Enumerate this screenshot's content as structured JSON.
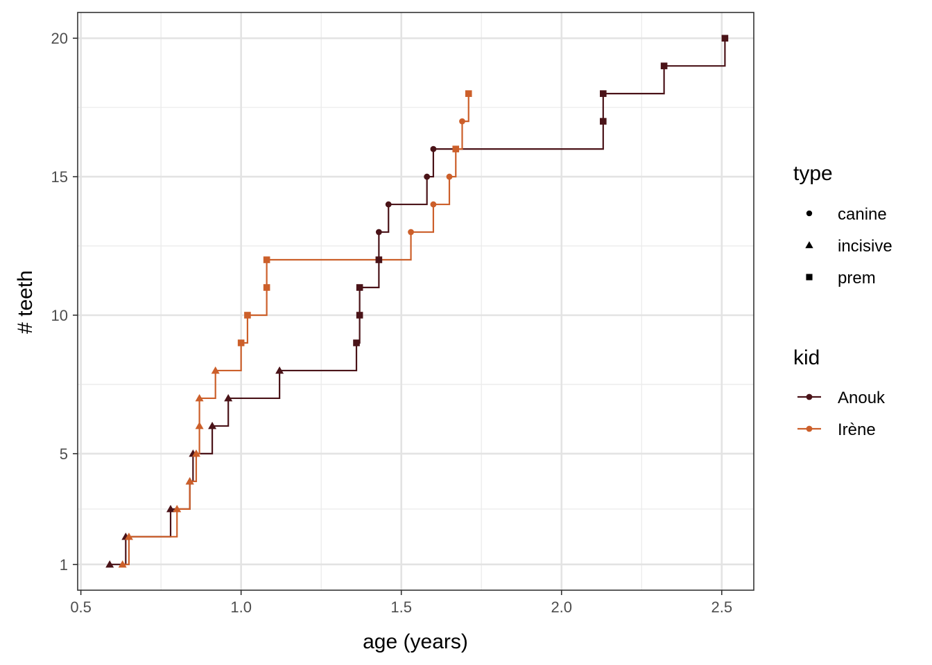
{
  "chart_data": {
    "type": "line",
    "step": "hv",
    "xlabel": "age (years)",
    "ylabel": "# teeth",
    "xlim": [
      0.49,
      2.6
    ],
    "ylim": [
      0.07,
      20.93
    ],
    "x_ticks": [
      0.5,
      1.0,
      1.5,
      2.0,
      2.5
    ],
    "x_tick_labels": [
      "0.5",
      "1.0",
      "1.5",
      "2.0",
      "2.5"
    ],
    "x_minor": [
      0.75,
      1.25,
      1.75,
      2.25
    ],
    "y_ticks": [
      1,
      5,
      10,
      15,
      20
    ],
    "y_tick_labels": [
      "1",
      "5",
      "10",
      "15",
      "20"
    ],
    "y_minor": [
      3,
      7.5,
      12.5,
      17.5
    ],
    "grid": true,
    "legend_position": "right",
    "shape_legend": {
      "title": "type",
      "items": [
        {
          "label": "canine",
          "shape": "circle"
        },
        {
          "label": "incisive",
          "shape": "triangle"
        },
        {
          "label": "prem",
          "shape": "square"
        }
      ]
    },
    "color_legend": {
      "title": "kid",
      "items": [
        {
          "label": "Anouk",
          "color": "#4a1318"
        },
        {
          "label": "Irène",
          "color": "#cc5f2a"
        }
      ]
    },
    "series": [
      {
        "name": "Anouk",
        "color": "#4a1318",
        "points": [
          {
            "x": 0.59,
            "y": 1,
            "type": "incisive"
          },
          {
            "x": 0.64,
            "y": 2,
            "type": "incisive"
          },
          {
            "x": 0.78,
            "y": 3,
            "type": "incisive"
          },
          {
            "x": 0.84,
            "y": 4,
            "type": "incisive"
          },
          {
            "x": 0.85,
            "y": 5,
            "type": "incisive"
          },
          {
            "x": 0.91,
            "y": 6,
            "type": "incisive"
          },
          {
            "x": 0.96,
            "y": 7,
            "type": "incisive"
          },
          {
            "x": 1.12,
            "y": 8,
            "type": "incisive"
          },
          {
            "x": 1.36,
            "y": 9,
            "type": "prem"
          },
          {
            "x": 1.37,
            "y": 10,
            "type": "prem"
          },
          {
            "x": 1.37,
            "y": 11,
            "type": "prem"
          },
          {
            "x": 1.43,
            "y": 12,
            "type": "prem"
          },
          {
            "x": 1.43,
            "y": 13,
            "type": "canine"
          },
          {
            "x": 1.46,
            "y": 14,
            "type": "canine"
          },
          {
            "x": 1.58,
            "y": 15,
            "type": "canine"
          },
          {
            "x": 1.6,
            "y": 16,
            "type": "canine"
          },
          {
            "x": 2.13,
            "y": 17,
            "type": "prem"
          },
          {
            "x": 2.13,
            "y": 18,
            "type": "prem"
          },
          {
            "x": 2.32,
            "y": 19,
            "type": "prem"
          },
          {
            "x": 2.51,
            "y": 20,
            "type": "prem"
          }
        ]
      },
      {
        "name": "Irène",
        "color": "#cc5f2a",
        "points": [
          {
            "x": 0.63,
            "y": 1,
            "type": "incisive"
          },
          {
            "x": 0.65,
            "y": 2,
            "type": "incisive"
          },
          {
            "x": 0.8,
            "y": 3,
            "type": "incisive"
          },
          {
            "x": 0.84,
            "y": 4,
            "type": "incisive"
          },
          {
            "x": 0.86,
            "y": 5,
            "type": "incisive"
          },
          {
            "x": 0.87,
            "y": 6,
            "type": "incisive"
          },
          {
            "x": 0.87,
            "y": 7,
            "type": "incisive"
          },
          {
            "x": 0.92,
            "y": 8,
            "type": "incisive"
          },
          {
            "x": 1.0,
            "y": 9,
            "type": "prem"
          },
          {
            "x": 1.02,
            "y": 10,
            "type": "prem"
          },
          {
            "x": 1.08,
            "y": 11,
            "type": "prem"
          },
          {
            "x": 1.08,
            "y": 12,
            "type": "prem"
          },
          {
            "x": 1.53,
            "y": 13,
            "type": "canine"
          },
          {
            "x": 1.6,
            "y": 14,
            "type": "canine"
          },
          {
            "x": 1.65,
            "y": 15,
            "type": "canine"
          },
          {
            "x": 1.67,
            "y": 16,
            "type": "prem"
          },
          {
            "x": 1.69,
            "y": 17,
            "type": "canine"
          },
          {
            "x": 1.71,
            "y": 18,
            "type": "prem"
          }
        ]
      }
    ]
  }
}
